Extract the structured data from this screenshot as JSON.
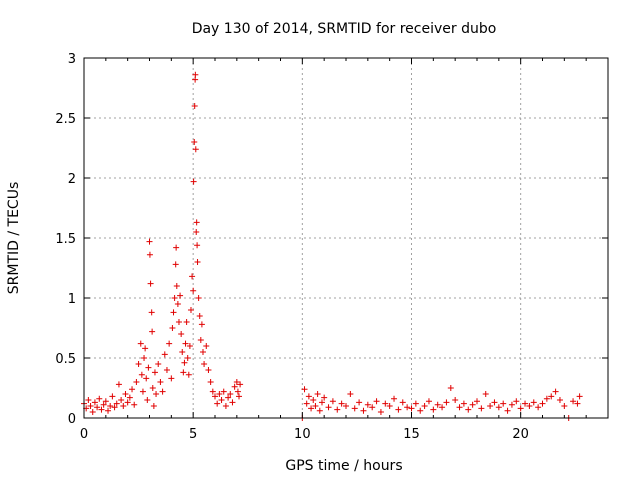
{
  "chart_data": {
    "type": "scatter",
    "title": "Day 130 of 2014, SRMTID for receiver dubo",
    "xlabel": "GPS time / hours",
    "ylabel": "SRMTID / TECUs",
    "xlim": [
      0,
      24
    ],
    "ylim": [
      0,
      3
    ],
    "xticks": [
      0,
      5,
      10,
      15,
      20
    ],
    "yticks": [
      0,
      0.5,
      1,
      1.5,
      2,
      2.5,
      3
    ],
    "grid": true,
    "marker": "plus",
    "color": "#e00000",
    "series": [
      {
        "name": "SRMTID",
        "description_of_trend": "noisy points",
        "points": [
          [
            0.0,
            0.12
          ],
          [
            0.1,
            0.08
          ],
          [
            0.2,
            0.15
          ],
          [
            0.3,
            0.1
          ],
          [
            0.4,
            0.05
          ],
          [
            0.5,
            0.13
          ],
          [
            0.6,
            0.09
          ],
          [
            0.7,
            0.16
          ],
          [
            0.8,
            0.07
          ],
          [
            0.9,
            0.11
          ],
          [
            1.0,
            0.14
          ],
          [
            1.1,
            0.06
          ],
          [
            1.2,
            0.1
          ],
          [
            1.3,
            0.18
          ],
          [
            1.4,
            0.09
          ],
          [
            1.5,
            0.12
          ],
          [
            1.6,
            0.28
          ],
          [
            1.7,
            0.15
          ],
          [
            1.8,
            0.1
          ],
          [
            1.9,
            0.2
          ],
          [
            2.0,
            0.13
          ],
          [
            2.1,
            0.17
          ],
          [
            2.2,
            0.24
          ],
          [
            2.3,
            0.11
          ],
          [
            2.4,
            0.3
          ],
          [
            2.5,
            0.45
          ],
          [
            2.6,
            0.62
          ],
          [
            2.65,
            0.36
          ],
          [
            2.7,
            0.22
          ],
          [
            2.75,
            0.5
          ],
          [
            2.8,
            0.58
          ],
          [
            2.85,
            0.33
          ],
          [
            2.9,
            0.15
          ],
          [
            2.95,
            0.42
          ],
          [
            3.0,
            1.47
          ],
          [
            3.02,
            1.36
          ],
          [
            3.05,
            1.12
          ],
          [
            3.1,
            0.88
          ],
          [
            3.12,
            0.72
          ],
          [
            3.15,
            0.25
          ],
          [
            3.2,
            0.1
          ],
          [
            3.25,
            0.38
          ],
          [
            3.3,
            0.2
          ],
          [
            3.4,
            0.45
          ],
          [
            3.5,
            0.3
          ],
          [
            3.6,
            0.22
          ],
          [
            3.7,
            0.53
          ],
          [
            3.8,
            0.4
          ],
          [
            3.9,
            0.62
          ],
          [
            4.0,
            0.33
          ],
          [
            4.05,
            0.75
          ],
          [
            4.1,
            0.88
          ],
          [
            4.15,
            1.0
          ],
          [
            4.2,
            1.28
          ],
          [
            4.22,
            1.42
          ],
          [
            4.25,
            1.1
          ],
          [
            4.3,
            0.95
          ],
          [
            4.35,
            0.8
          ],
          [
            4.4,
            1.02
          ],
          [
            4.45,
            0.7
          ],
          [
            4.5,
            0.55
          ],
          [
            4.55,
            0.38
          ],
          [
            4.6,
            0.46
          ],
          [
            4.65,
            0.62
          ],
          [
            4.7,
            0.8
          ],
          [
            4.75,
            0.5
          ],
          [
            4.8,
            0.36
          ],
          [
            4.85,
            0.6
          ],
          [
            4.9,
            0.9
          ],
          [
            4.95,
            1.18
          ],
          [
            5.0,
            1.06
          ],
          [
            5.02,
            1.97
          ],
          [
            5.05,
            2.3
          ],
          [
            5.07,
            2.6
          ],
          [
            5.09,
            2.82
          ],
          [
            5.1,
            2.86
          ],
          [
            5.12,
            2.24
          ],
          [
            5.14,
            1.55
          ],
          [
            5.16,
            1.63
          ],
          [
            5.18,
            1.44
          ],
          [
            5.2,
            1.3
          ],
          [
            5.25,
            1.0
          ],
          [
            5.3,
            0.85
          ],
          [
            5.35,
            0.65
          ],
          [
            5.4,
            0.78
          ],
          [
            5.45,
            0.55
          ],
          [
            5.5,
            0.45
          ],
          [
            5.6,
            0.6
          ],
          [
            5.7,
            0.4
          ],
          [
            5.8,
            0.3
          ],
          [
            5.9,
            0.22
          ],
          [
            6.0,
            0.18
          ],
          [
            6.1,
            0.12
          ],
          [
            6.2,
            0.2
          ],
          [
            6.3,
            0.15
          ],
          [
            6.4,
            0.22
          ],
          [
            6.5,
            0.1
          ],
          [
            6.6,
            0.17
          ],
          [
            6.7,
            0.2
          ],
          [
            6.8,
            0.13
          ],
          [
            6.9,
            0.26
          ],
          [
            7.0,
            0.3
          ],
          [
            7.05,
            0.22
          ],
          [
            7.1,
            0.18
          ],
          [
            7.15,
            0.28
          ],
          [
            10.0,
            0.0
          ],
          [
            10.1,
            0.24
          ],
          [
            10.2,
            0.12
          ],
          [
            10.3,
            0.18
          ],
          [
            10.4,
            0.08
          ],
          [
            10.5,
            0.15
          ],
          [
            10.6,
            0.1
          ],
          [
            10.7,
            0.2
          ],
          [
            10.8,
            0.06
          ],
          [
            10.9,
            0.13
          ],
          [
            11.0,
            0.17
          ],
          [
            11.2,
            0.09
          ],
          [
            11.4,
            0.14
          ],
          [
            11.6,
            0.07
          ],
          [
            11.8,
            0.12
          ],
          [
            12.0,
            0.1
          ],
          [
            12.2,
            0.2
          ],
          [
            12.4,
            0.08
          ],
          [
            12.6,
            0.13
          ],
          [
            12.8,
            0.06
          ],
          [
            13.0,
            0.11
          ],
          [
            13.2,
            0.09
          ],
          [
            13.4,
            0.14
          ],
          [
            13.6,
            0.05
          ],
          [
            13.8,
            0.12
          ],
          [
            14.0,
            0.1
          ],
          [
            14.2,
            0.16
          ],
          [
            14.4,
            0.07
          ],
          [
            14.6,
            0.13
          ],
          [
            14.8,
            0.09
          ],
          [
            15.0,
            0.08
          ],
          [
            15.2,
            0.12
          ],
          [
            15.4,
            0.06
          ],
          [
            15.6,
            0.1
          ],
          [
            15.8,
            0.14
          ],
          [
            16.0,
            0.07
          ],
          [
            16.2,
            0.11
          ],
          [
            16.4,
            0.09
          ],
          [
            16.6,
            0.13
          ],
          [
            16.8,
            0.25
          ],
          [
            17.0,
            0.15
          ],
          [
            17.2,
            0.09
          ],
          [
            17.4,
            0.12
          ],
          [
            17.6,
            0.07
          ],
          [
            17.8,
            0.11
          ],
          [
            18.0,
            0.14
          ],
          [
            18.2,
            0.08
          ],
          [
            18.4,
            0.2
          ],
          [
            18.6,
            0.1
          ],
          [
            18.8,
            0.13
          ],
          [
            19.0,
            0.09
          ],
          [
            19.2,
            0.12
          ],
          [
            19.4,
            0.06
          ],
          [
            19.6,
            0.11
          ],
          [
            19.8,
            0.14
          ],
          [
            20.0,
            0.08
          ],
          [
            20.2,
            0.12
          ],
          [
            20.4,
            0.1
          ],
          [
            20.6,
            0.13
          ],
          [
            20.8,
            0.09
          ],
          [
            21.0,
            0.12
          ],
          [
            21.2,
            0.16
          ],
          [
            21.4,
            0.18
          ],
          [
            21.6,
            0.22
          ],
          [
            21.8,
            0.15
          ],
          [
            22.0,
            0.1
          ],
          [
            22.2,
            0.0
          ],
          [
            22.4,
            0.14
          ],
          [
            22.6,
            0.12
          ],
          [
            22.7,
            0.18
          ]
        ]
      }
    ]
  }
}
